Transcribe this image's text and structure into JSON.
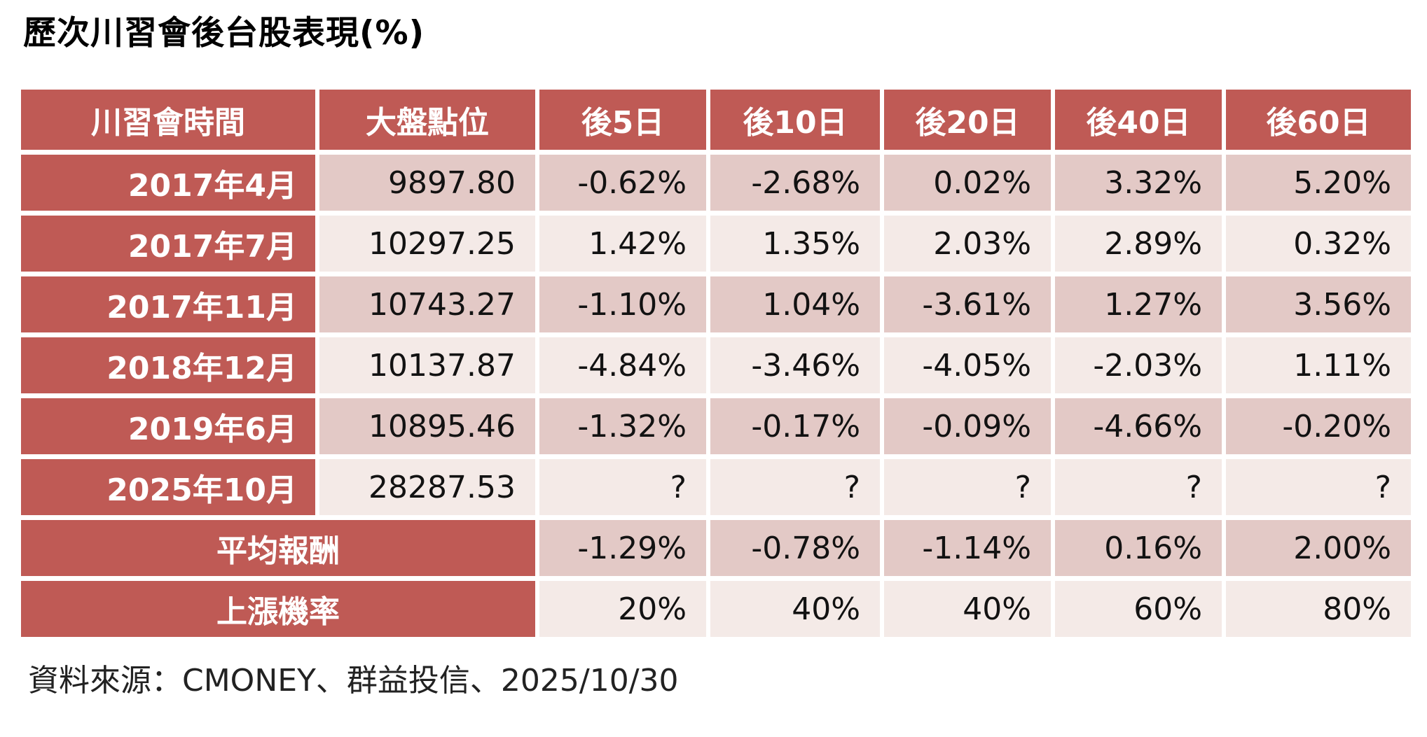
{
  "chart_data": {
    "type": "table",
    "title": "歷次川習會後台股表現(%)",
    "columns": [
      "川習會時間",
      "大盤點位",
      "後5日",
      "後10日",
      "後20日",
      "後40日",
      "後60日"
    ],
    "rows": [
      [
        "2017年4月",
        "9897.80",
        "-0.62%",
        "-2.68%",
        "0.02%",
        "3.32%",
        "5.20%"
      ],
      [
        "2017年7月",
        "10297.25",
        "1.42%",
        "1.35%",
        "2.03%",
        "2.89%",
        "0.32%"
      ],
      [
        "2017年11月",
        "10743.27",
        "-1.10%",
        "1.04%",
        "-3.61%",
        "1.27%",
        "3.56%"
      ],
      [
        "2018年12月",
        "10137.87",
        "-4.84%",
        "-3.46%",
        "-4.05%",
        "-2.03%",
        "1.11%"
      ],
      [
        "2019年6月",
        "10895.46",
        "-1.32%",
        "-0.17%",
        "-0.09%",
        "-4.66%",
        "-0.20%"
      ],
      [
        "2025年10月",
        "28287.53",
        "?",
        "?",
        "?",
        "?",
        "?"
      ]
    ],
    "summary_rows": [
      [
        "平均報酬",
        "-1.29%",
        "-0.78%",
        "-1.14%",
        "0.16%",
        "2.00%"
      ],
      [
        "上漲機率",
        "20%",
        "40%",
        "40%",
        "60%",
        "80%"
      ]
    ],
    "source": "資料來源：CMONEY、群益投信、2025/10/30",
    "layout": {
      "banded_rows": true,
      "header_position": "top",
      "summary_label_colspan": 2
    },
    "colors": {
      "header_bg": "#BF5A55",
      "header_text": "#FFFFFF",
      "row_band_dark": "#E3C9C6",
      "row_band_light": "#F4EAE7",
      "value_text": "#121212"
    }
  }
}
